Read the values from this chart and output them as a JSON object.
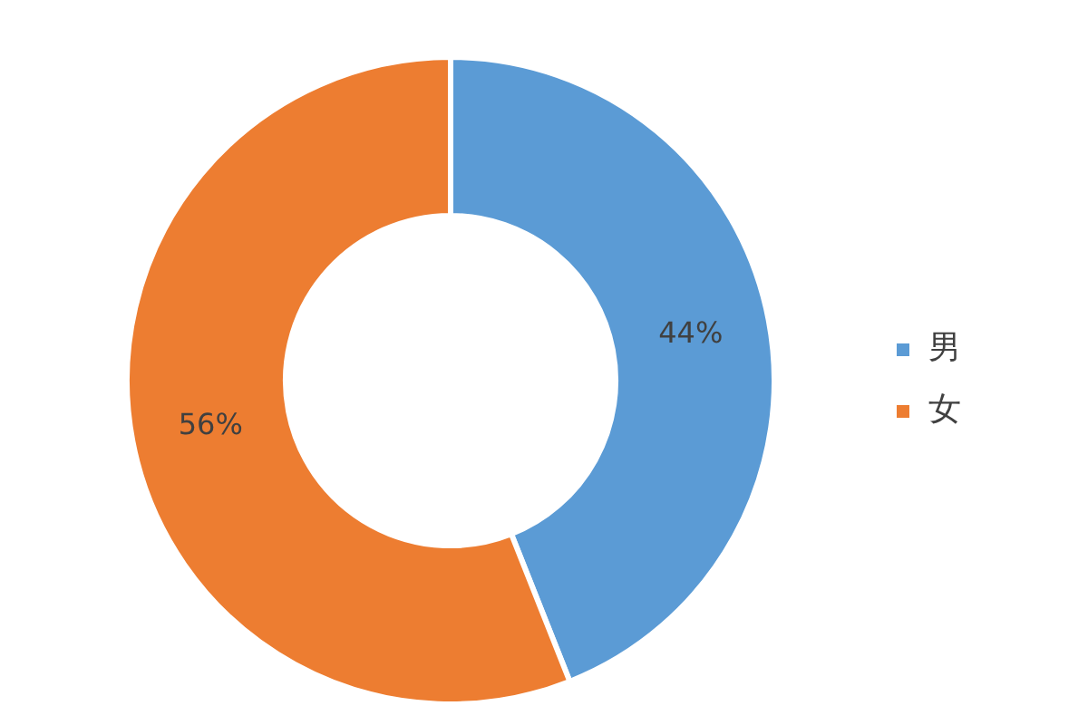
{
  "chart_data": {
    "type": "donut",
    "categories": [
      "男",
      "女"
    ],
    "values": [
      44,
      56
    ],
    "colors": [
      "#5b9bd5",
      "#ed7d31"
    ],
    "value_labels": [
      "44%",
      "56%"
    ],
    "legend": "right"
  }
}
